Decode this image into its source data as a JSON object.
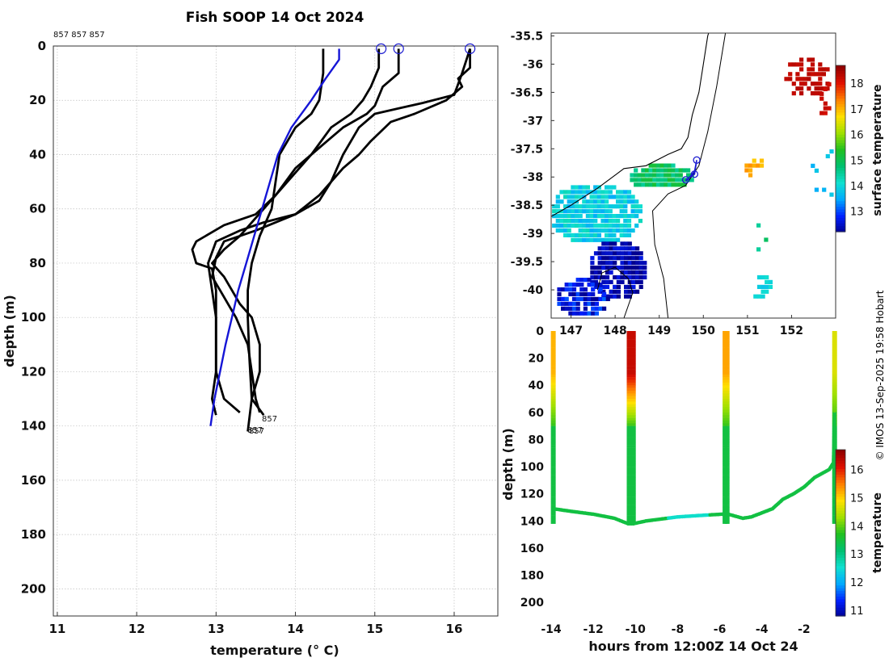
{
  "title": "Fish SOOP 14 Oct 2024",
  "credit": "© IMOS 13-Sep-2025 19:58 Hobart",
  "colors": {
    "profile": "#000000",
    "mean_profile": "#1515d6",
    "marker": "#1a1ad0",
    "coast": "#000000",
    "grid": "#bfbfbf"
  },
  "colormap": [
    "#00008f",
    "#0020ff",
    "#00a8ff",
    "#10e0d0",
    "#00c070",
    "#20c020",
    "#a0e000",
    "#ffe000",
    "#ff8000",
    "#e01000",
    "#900000"
  ],
  "chart_data": [
    {
      "type": "line",
      "name": "temperature-profiles",
      "title": "Fish SOOP 14 Oct 2024",
      "corner_label": "857 857 857",
      "xlabel": "temperature (° C)",
      "ylabel": "depth (m)",
      "xlim": [
        10.95,
        16.55
      ],
      "ylim": [
        210,
        0
      ],
      "xticks": [
        "11",
        "12",
        "13",
        "14",
        "15",
        "16"
      ],
      "yticks": [
        "0",
        "20",
        "40",
        "60",
        "80",
        "100",
        "120",
        "140",
        "160",
        "180",
        "200"
      ],
      "end_labels": [
        "857",
        "857",
        "857"
      ],
      "surface_markers": [
        [
          15.08,
          1
        ],
        [
          15.3,
          1
        ],
        [
          16.2,
          1
        ]
      ],
      "series": [
        {
          "name": "profile-1",
          "points": [
            [
              14.35,
              1
            ],
            [
              14.35,
              10
            ],
            [
              14.3,
              20
            ],
            [
              14.2,
              25
            ],
            [
              14.0,
              30
            ],
            [
              13.8,
              40
            ],
            [
              13.75,
              50
            ],
            [
              13.7,
              60
            ],
            [
              13.55,
              70
            ],
            [
              13.45,
              80
            ],
            [
              13.4,
              90
            ],
            [
              13.4,
              100
            ],
            [
              13.42,
              115
            ],
            [
              13.45,
              130
            ],
            [
              13.4,
              142
            ]
          ]
        },
        {
          "name": "profile-2",
          "points": [
            [
              15.05,
              1
            ],
            [
              15.05,
              8
            ],
            [
              14.95,
              15
            ],
            [
              14.85,
              20
            ],
            [
              14.7,
              25
            ],
            [
              14.45,
              30
            ],
            [
              14.2,
              40
            ],
            [
              14.0,
              45
            ],
            [
              13.75,
              55
            ],
            [
              13.5,
              62
            ],
            [
              13.1,
              66
            ],
            [
              12.75,
              72
            ],
            [
              12.7,
              75
            ],
            [
              12.75,
              80
            ],
            [
              12.95,
              82
            ],
            [
              13.0,
              90
            ],
            [
              13.0,
              100
            ],
            [
              13.0,
              120
            ],
            [
              12.95,
              130
            ],
            [
              13.0,
              136
            ]
          ]
        },
        {
          "name": "profile-3",
          "points": [
            [
              15.3,
              1
            ],
            [
              15.3,
              10
            ],
            [
              15.1,
              15
            ],
            [
              15.0,
              22
            ],
            [
              14.9,
              25
            ],
            [
              14.6,
              30
            ],
            [
              14.4,
              35
            ],
            [
              14.2,
              40
            ],
            [
              13.9,
              50
            ],
            [
              13.6,
              60
            ],
            [
              13.3,
              70
            ],
            [
              13.1,
              75
            ],
            [
              12.95,
              80
            ],
            [
              13.1,
              85
            ],
            [
              13.2,
              90
            ],
            [
              13.3,
              95
            ],
            [
              13.45,
              100
            ],
            [
              13.55,
              110
            ],
            [
              13.55,
              120
            ],
            [
              13.45,
              130
            ],
            [
              13.6,
              136
            ]
          ]
        },
        {
          "name": "profile-4",
          "points": [
            [
              16.2,
              1
            ],
            [
              16.2,
              8
            ],
            [
              16.05,
              12
            ],
            [
              16.1,
              15
            ],
            [
              15.9,
              20
            ],
            [
              15.5,
              25
            ],
            [
              15.2,
              28
            ],
            [
              14.95,
              35
            ],
            [
              14.8,
              40
            ],
            [
              14.6,
              45
            ],
            [
              14.3,
              55
            ],
            [
              14.0,
              62
            ],
            [
              13.5,
              68
            ],
            [
              13.1,
              72
            ],
            [
              13.0,
              78
            ],
            [
              12.95,
              85
            ],
            [
              13.05,
              90
            ],
            [
              13.25,
              100
            ],
            [
              13.4,
              110
            ],
            [
              13.45,
              120
            ],
            [
              13.5,
              130
            ],
            [
              13.55,
              135
            ]
          ]
        },
        {
          "name": "profile-5",
          "points": [
            [
              16.2,
              1
            ],
            [
              16.1,
              10
            ],
            [
              16.0,
              18
            ],
            [
              15.6,
              21
            ],
            [
              15.3,
              23
            ],
            [
              15.0,
              25
            ],
            [
              14.8,
              30
            ],
            [
              14.6,
              40
            ],
            [
              14.45,
              50
            ],
            [
              14.3,
              57
            ],
            [
              14.0,
              62
            ],
            [
              13.6,
              65
            ],
            [
              13.3,
              68
            ],
            [
              13.0,
              72
            ],
            [
              12.9,
              80
            ],
            [
              12.95,
              90
            ],
            [
              13.0,
              100
            ],
            [
              13.0,
              120
            ],
            [
              13.1,
              130
            ],
            [
              13.3,
              135
            ]
          ]
        },
        {
          "name": "mean-profile",
          "points": [
            [
              14.55,
              1
            ],
            [
              14.55,
              5
            ],
            [
              14.38,
              12
            ],
            [
              14.2,
              20
            ],
            [
              13.95,
              30
            ],
            [
              13.78,
              40
            ],
            [
              13.68,
              50
            ],
            [
              13.58,
              60
            ],
            [
              13.48,
              70
            ],
            [
              13.38,
              80
            ],
            [
              13.28,
              90
            ],
            [
              13.2,
              100
            ],
            [
              13.12,
              110
            ],
            [
              13.05,
              120
            ],
            [
              12.98,
              130
            ],
            [
              12.93,
              140
            ]
          ]
        }
      ]
    },
    {
      "type": "heatmap",
      "name": "sst-map",
      "xlim": [
        146.55,
        153.0
      ],
      "ylim": [
        -40.5,
        -35.45
      ],
      "xticks": [
        "147",
        "148",
        "149",
        "150",
        "151",
        "152"
      ],
      "yticks": [
        "-35.5",
        "-36",
        "-36.5",
        "-37",
        "-37.5",
        "-38",
        "-38.5",
        "-39",
        "-39.5",
        "-40"
      ],
      "colorbar_label": "surface temperature",
      "colorbar_range": [
        12.2,
        18.7
      ],
      "colorbar_ticks": [
        "13",
        "14",
        "15",
        "16",
        "17",
        "18"
      ],
      "track": [
        [
          149.6,
          -38.05
        ],
        [
          149.8,
          -37.95
        ],
        [
          149.85,
          -37.7
        ],
        [
          149.8,
          -37.9
        ],
        [
          149.6,
          -38.08
        ]
      ],
      "regions": [
        {
          "name": "bass-strait-water",
          "value": 12.5
        },
        {
          "name": "warm-current",
          "value": 14.5
        },
        {
          "name": "tasman-front",
          "value": 18.4
        }
      ]
    },
    {
      "type": "scatter",
      "name": "depth-time-section",
      "xlabel": "hours from 12:00Z 14 Oct 24",
      "ylabel": "depth (m)",
      "xlim": [
        -14,
        0
      ],
      "ylim": [
        210,
        0
      ],
      "xticks": [
        "-14",
        "-12",
        "-10",
        "-8",
        "-6",
        "-4",
        "-2"
      ],
      "yticks": [
        "0",
        "20",
        "40",
        "60",
        "80",
        "100",
        "120",
        "140",
        "160",
        "180",
        "200"
      ],
      "colorbar_label": "temperature",
      "colorbar_range": [
        10.8,
        16.7
      ],
      "colorbar_ticks": [
        "11",
        "12",
        "13",
        "14",
        "15",
        "16"
      ],
      "bottom_track": [
        [
          -13.9,
          131
        ],
        [
          -13,
          133
        ],
        [
          -12,
          135
        ],
        [
          -11,
          138
        ],
        [
          -10.35,
          142
        ],
        [
          -10.1,
          142
        ],
        [
          -9.5,
          140
        ],
        [
          -8.5,
          138
        ],
        [
          -8,
          137
        ],
        [
          -7,
          136
        ],
        [
          -5.9,
          135
        ],
        [
          -5.6,
          135
        ],
        [
          -4.9,
          138
        ],
        [
          -4.5,
          137
        ],
        [
          -4,
          134
        ],
        [
          -3.5,
          131
        ],
        [
          -3,
          124
        ],
        [
          -2.5,
          120
        ],
        [
          -2,
          115
        ],
        [
          -1.5,
          108
        ],
        [
          -0.8,
          102
        ],
        [
          -0.6,
          97
        ],
        [
          -0.55,
          60
        ],
        [
          -0.55,
          1
        ]
      ],
      "casts": [
        {
          "x": -13.9,
          "surface_temp": 15.2
        },
        {
          "x": -10.3,
          "surface_temp": 16.3
        },
        {
          "x": -10.1,
          "surface_temp": 16.3
        },
        {
          "x": -5.75,
          "surface_temp": 15.3
        },
        {
          "x": -5.65,
          "surface_temp": 15.3
        },
        {
          "x": -0.55,
          "surface_temp": 14.7
        }
      ]
    }
  ]
}
